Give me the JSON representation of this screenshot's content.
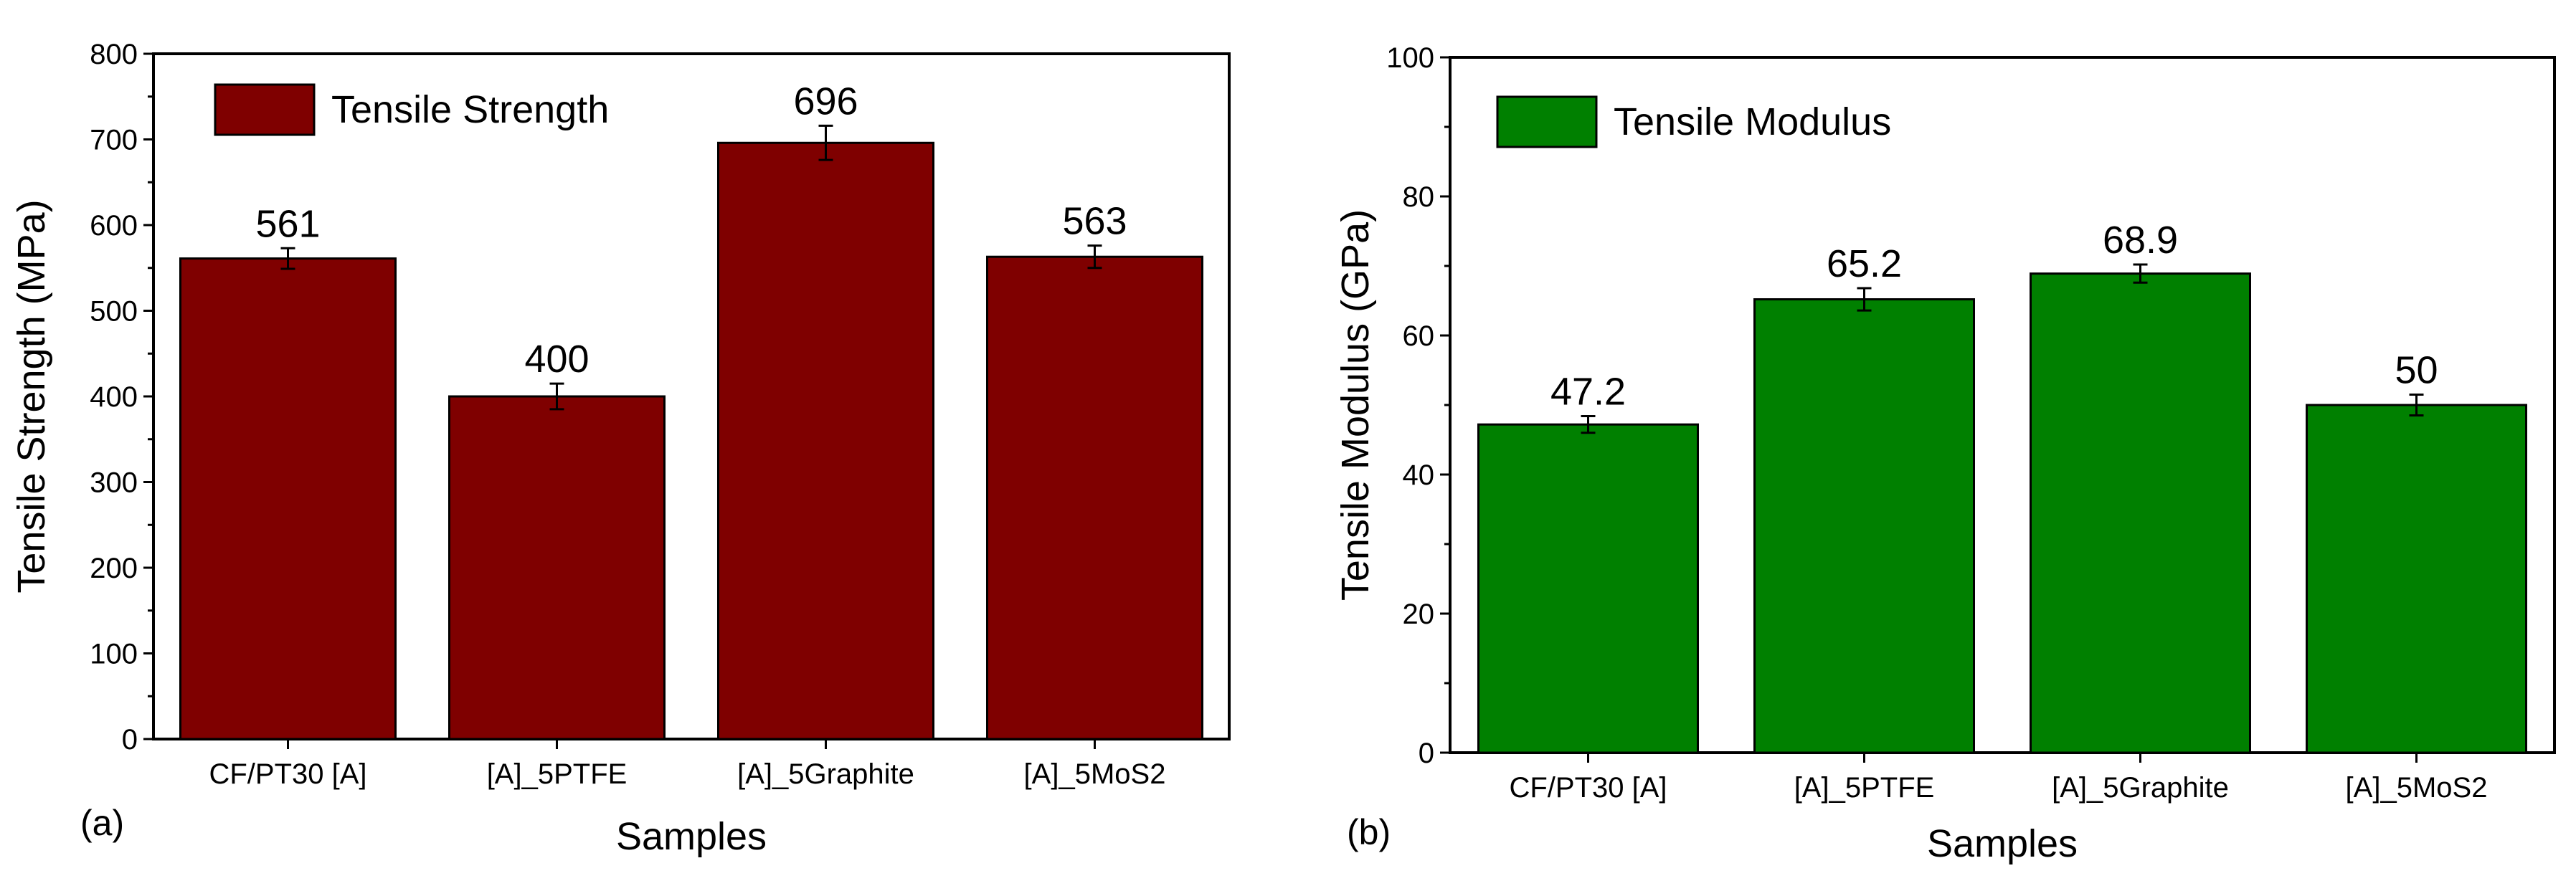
{
  "chart_data": [
    {
      "type": "bar",
      "panel_label": "(a)",
      "categories": [
        "CF/PT30 [A]",
        "[A]_5PTFE",
        "[A]_5Graphite",
        "[A]_5MoS2"
      ],
      "values": [
        561,
        400,
        696,
        563
      ],
      "errors": [
        12,
        15,
        20,
        13
      ],
      "value_labels": [
        "561",
        "400",
        "696",
        "563"
      ],
      "legend": "Tensile Strength",
      "xlabel": "Samples",
      "ylabel": "Tensile Strength (MPa)",
      "ylim": [
        0,
        800
      ],
      "yticks": [
        0,
        100,
        200,
        300,
        400,
        500,
        600,
        700,
        800
      ],
      "color": "#7f0000"
    },
    {
      "type": "bar",
      "panel_label": "(b)",
      "categories": [
        "CF/PT30 [A]",
        "[A]_5PTFE",
        "[A]_5Graphite",
        "[A]_5MoS2"
      ],
      "values": [
        47.2,
        65.2,
        68.9,
        50
      ],
      "errors": [
        1.2,
        1.6,
        1.3,
        1.5
      ],
      "value_labels": [
        "47.2",
        "65.2",
        "68.9",
        "50"
      ],
      "legend": "Tensile Modulus",
      "xlabel": "Samples",
      "ylabel": "Tensile Modulus (GPa)",
      "ylim": [
        0,
        100
      ],
      "yticks": [
        0,
        20,
        40,
        60,
        80,
        100
      ],
      "color": "#008000"
    }
  ]
}
